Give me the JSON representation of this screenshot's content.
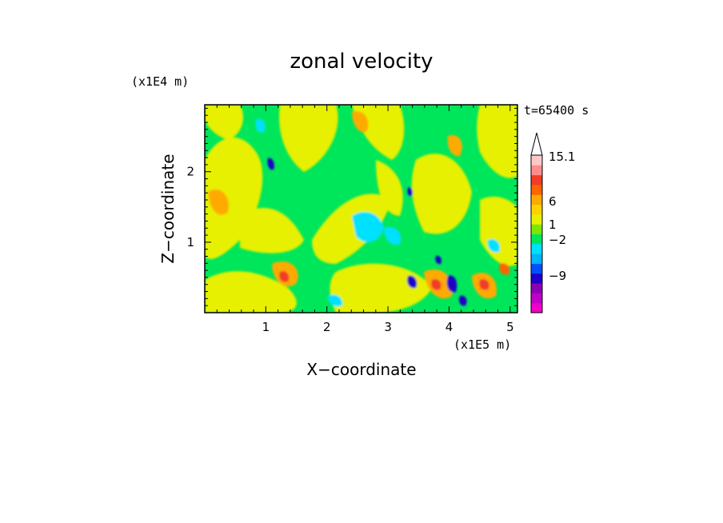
{
  "chart_data": {
    "type": "heatmap",
    "title": "zonal velocity",
    "xlabel": "X−coordinate",
    "ylabel": "Z−coordinate",
    "x_scale_note": "(x1E5 m)",
    "y_scale_note": "(x1E4 m)",
    "time_label": "t=65400 s",
    "xlim": [
      0,
      5.12
    ],
    "ylim": [
      0,
      2.95
    ],
    "x_ticks": [
      1,
      2,
      3,
      4,
      5
    ],
    "y_ticks": [
      1,
      2
    ],
    "x_tick_labels": [
      "1",
      "2",
      "3",
      "4",
      "5"
    ],
    "y_tick_labels": [
      "1",
      "2"
    ],
    "colorbar": {
      "bins": [
        {
          "color": "#f000c8"
        },
        {
          "color": "#c000c8"
        },
        {
          "color": "#8c00b4"
        },
        {
          "color": "#1e00c8"
        },
        {
          "color": "#0050ff"
        },
        {
          "color": "#00b4ff"
        },
        {
          "color": "#00e0ff"
        },
        {
          "color": "#00e65a"
        },
        {
          "color": "#7de600"
        },
        {
          "color": "#e6f000"
        },
        {
          "color": "#ffd200"
        },
        {
          "color": "#ffaa00"
        },
        {
          "color": "#ff6400"
        },
        {
          "color": "#f03c28"
        },
        {
          "color": "#ff8c8c"
        },
        {
          "color": "#ffc8c8"
        }
      ],
      "tick_labels": [
        "15.1",
        "6",
        "1",
        "−2",
        "−9"
      ]
    }
  }
}
